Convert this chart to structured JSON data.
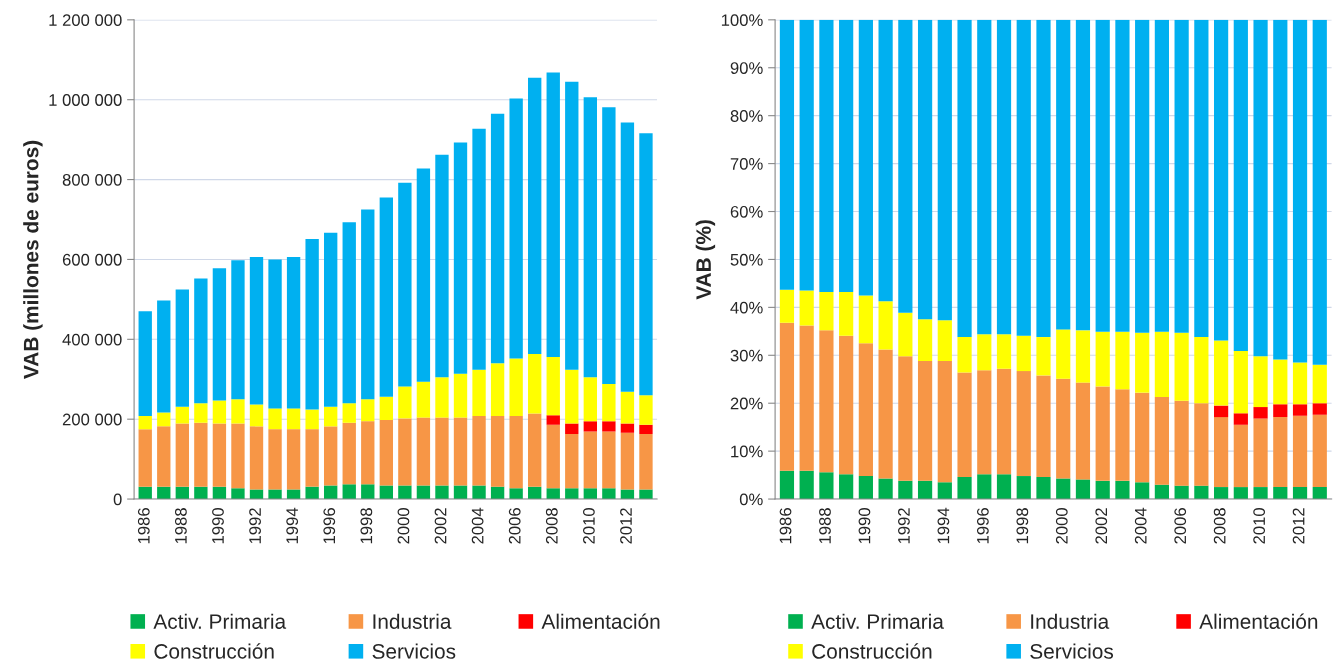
{
  "chart_data": [
    {
      "type": "bar",
      "stacked": true,
      "ylabel": "VAB (millones de euros)",
      "legend": "bottom",
      "grid": "y",
      "categories": [
        "1986",
        null,
        "1988",
        null,
        "1990",
        null,
        "1992",
        null,
        "1994",
        null,
        "1996",
        null,
        "1998",
        null,
        "2000",
        null,
        "2002",
        null,
        "2004",
        null,
        "2006",
        null,
        "2008",
        null,
        "2010",
        null,
        "2012",
        null
      ],
      "ylim": [
        0,
        1200000
      ],
      "yticks": [
        {
          "value": 0,
          "label": "0"
        },
        {
          "value": 200000,
          "label": "200 000"
        },
        {
          "value": 400000,
          "label": "400 000"
        },
        {
          "value": 600000,
          "label": "600 000"
        },
        {
          "value": 800000,
          "label": "800 000"
        },
        {
          "value": 1000000,
          "label": "1 000 000"
        },
        {
          "value": 1200000,
          "label": "1 200 000"
        }
      ],
      "series": [
        {
          "name": "Activ. Primaria",
          "color": "#00b050",
          "values": [
            31000,
            31000,
            31000,
            31000,
            31000,
            27000,
            24000,
            24000,
            24000,
            31000,
            34000,
            37000,
            37000,
            34000,
            34000,
            34000,
            34000,
            34000,
            34000,
            31000,
            27000,
            31000,
            27000,
            27000,
            27000,
            27000,
            24000,
            24000
          ]
        },
        {
          "name": "Industria",
          "color": "#f79646",
          "values": [
            144000,
            151000,
            158000,
            160000,
            158000,
            162000,
            158000,
            151000,
            151000,
            144000,
            148000,
            154000,
            158000,
            164000,
            168000,
            170000,
            170000,
            170000,
            174000,
            177000,
            181000,
            183000,
            159000,
            136000,
            142000,
            142000,
            142000,
            139000
          ]
        },
        {
          "name": "Alimentación",
          "color": "#ff0000",
          "values": [
            null,
            null,
            null,
            null,
            null,
            null,
            null,
            null,
            null,
            null,
            null,
            null,
            null,
            null,
            null,
            null,
            null,
            null,
            null,
            null,
            null,
            null,
            24000,
            26000,
            26000,
            26000,
            23000,
            23000
          ]
        },
        {
          "name": "Construcción",
          "color": "#ffff00",
          "values": [
            33000,
            35000,
            42000,
            49000,
            58000,
            61000,
            55000,
            52000,
            52000,
            49000,
            49000,
            49000,
            55000,
            58000,
            80000,
            90000,
            101000,
            110000,
            116000,
            132000,
            144000,
            149000,
            146000,
            135000,
            110000,
            93000,
            80000,
            74000
          ]
        },
        {
          "name": "Servicios",
          "color": "#00b0f0",
          "values": [
            262000,
            280000,
            294000,
            312000,
            331000,
            348000,
            369000,
            373000,
            379000,
            427000,
            436000,
            453000,
            475000,
            499000,
            510000,
            534000,
            557000,
            579000,
            603000,
            625000,
            651000,
            692000,
            712000,
            721000,
            701000,
            693000,
            674000,
            656000
          ]
        }
      ]
    },
    {
      "type": "bar",
      "stacked": true,
      "ylabel": "VAB (%)",
      "legend": "bottom",
      "grid": "y",
      "categories": [
        "1986",
        null,
        "1988",
        null,
        "1990",
        null,
        "1992",
        null,
        "1994",
        null,
        "1996",
        null,
        "1998",
        null,
        "2000",
        null,
        "2002",
        null,
        "2004",
        null,
        "2006",
        null,
        "2008",
        null,
        "2010",
        null,
        "2012",
        null
      ],
      "ylim": [
        0,
        100
      ],
      "yticks": [
        {
          "value": 0,
          "label": "0%"
        },
        {
          "value": 10,
          "label": "10%"
        },
        {
          "value": 20,
          "label": "20%"
        },
        {
          "value": 30,
          "label": "30%"
        },
        {
          "value": 40,
          "label": "40%"
        },
        {
          "value": 50,
          "label": "50%"
        },
        {
          "value": 60,
          "label": "60%"
        },
        {
          "value": 70,
          "label": "70%"
        },
        {
          "value": 80,
          "label": "80%"
        },
        {
          "value": 90,
          "label": "90%"
        },
        {
          "value": 100,
          "label": "100%"
        }
      ],
      "series": [
        {
          "name": "Activ. Primaria",
          "color": "#00b050",
          "values": [
            5.9,
            5.9,
            5.6,
            5.2,
            4.8,
            4.3,
            3.8,
            3.8,
            3.5,
            4.6,
            5.2,
            5.2,
            4.8,
            4.6,
            4.3,
            4.1,
            3.8,
            3.8,
            3.5,
            3.0,
            2.8,
            2.8,
            2.5,
            2.5,
            2.5,
            2.5,
            2.5,
            2.5
          ]
        },
        {
          "name": "Industria",
          "color": "#f79646",
          "values": [
            30.9,
            30.3,
            29.6,
            28.9,
            27.7,
            26.9,
            26.0,
            25.0,
            25.3,
            21.8,
            21.7,
            22.0,
            21.9,
            21.2,
            20.8,
            20.2,
            19.7,
            19.1,
            18.7,
            18.3,
            17.7,
            17.2,
            14.6,
            13.0,
            14.3,
            14.6,
            14.9,
            15.1
          ]
        },
        {
          "name": "Alimentación",
          "color": "#ff0000",
          "values": [
            null,
            null,
            null,
            null,
            null,
            null,
            null,
            null,
            null,
            null,
            null,
            null,
            null,
            null,
            null,
            null,
            null,
            null,
            null,
            null,
            null,
            null,
            2.4,
            2.4,
            2.4,
            2.7,
            2.4,
            2.4
          ]
        },
        {
          "name": "Construcción",
          "color": "#ffff00",
          "values": [
            6.9,
            7.3,
            8.0,
            9.1,
            10.0,
            10.1,
            9.1,
            8.7,
            8.5,
            7.4,
            7.5,
            7.2,
            7.4,
            8.0,
            10.3,
            10.9,
            11.4,
            12.0,
            12.5,
            13.6,
            14.2,
            13.8,
            13.6,
            13.0,
            10.6,
            9.3,
            8.7,
            8.0
          ]
        },
        {
          "name": "Servicios",
          "color": "#00b0f0",
          "values": [
            56.3,
            56.5,
            56.8,
            56.8,
            57.5,
            58.7,
            61.1,
            62.5,
            62.7,
            66.2,
            65.6,
            65.6,
            65.9,
            66.2,
            64.6,
            64.8,
            65.1,
            65.1,
            65.3,
            65.1,
            65.3,
            66.2,
            66.9,
            69.1,
            70.2,
            70.9,
            71.5,
            72.0
          ]
        }
      ]
    }
  ]
}
